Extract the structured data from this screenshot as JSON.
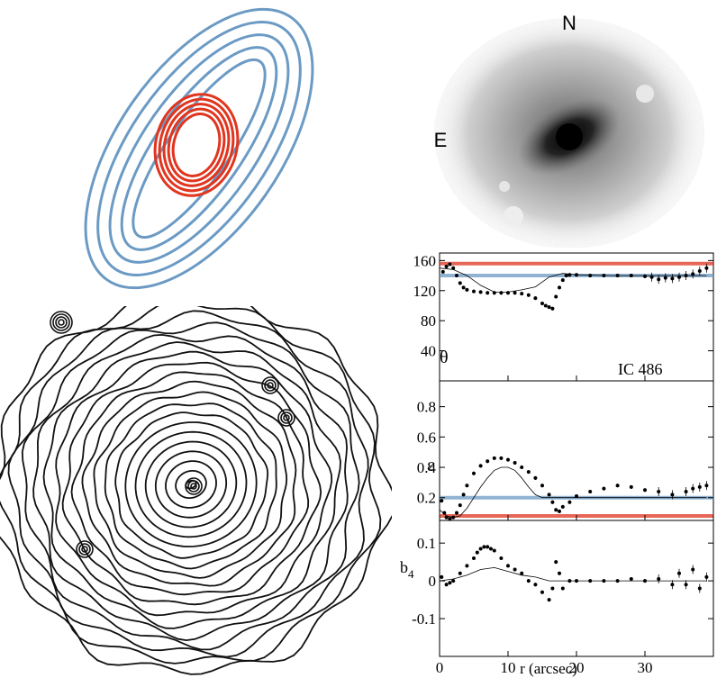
{
  "ellipse_panel": {
    "outer_color": "#6b9ac4",
    "inner_color": "#e0351f"
  },
  "galaxy_panel": {
    "north_label": "N",
    "east_label": "E"
  },
  "chart_data": [
    {
      "type": "scatter",
      "panel": "theta",
      "ylabel": "θ",
      "annotation": "IC 486",
      "ylim": [
        0,
        170
      ],
      "xlim": [
        0,
        40
      ],
      "yticks": [
        "40",
        "80",
        "120",
        "160"
      ],
      "ref_lines": [
        {
          "name": "",
          "color": "#e0351f",
          "value": 156
        },
        {
          "name": "",
          "color": "#6b9ac4",
          "value": 140
        }
      ],
      "data_x": [
        0.5,
        1,
        1.5,
        2,
        2.5,
        3,
        3.5,
        4,
        5,
        6,
        7,
        8,
        9,
        10,
        11,
        12,
        13,
        14,
        15,
        15.5,
        16,
        16.5,
        17,
        17.5,
        18,
        18.5,
        19,
        20,
        22,
        24,
        26,
        28,
        30,
        31,
        32,
        33,
        34,
        35,
        36,
        37,
        38,
        39
      ],
      "data_y": [
        145,
        152,
        155,
        150,
        140,
        130,
        124,
        121,
        119,
        118,
        117,
        117,
        117,
        117,
        117,
        116,
        114,
        110,
        103,
        100,
        98,
        96,
        112,
        124,
        134,
        140,
        141,
        141,
        140,
        140,
        140,
        140,
        139,
        138,
        135,
        137,
        136,
        138,
        140,
        142,
        146,
        150
      ],
      "model_x": [
        0,
        2,
        4,
        6,
        8,
        10,
        12,
        14,
        16,
        18,
        20,
        25,
        30,
        35,
        39
      ],
      "model_y": [
        150,
        148,
        140,
        127,
        118,
        118,
        121,
        125,
        138,
        143,
        141,
        140,
        140,
        140,
        140
      ]
    },
    {
      "type": "scatter",
      "panel": "ellipticity",
      "ylabel": "ε",
      "ylim": [
        0.05,
        0.97
      ],
      "xlim": [
        0,
        40
      ],
      "yticks": [
        "0.2",
        "0.4",
        "0.6",
        "0.8"
      ],
      "ref_lines": [
        {
          "name": "",
          "color": "#6b9ac4",
          "value": 0.2
        },
        {
          "name": "",
          "color": "#e0351f",
          "value": 0.08
        }
      ],
      "data_x": [
        0.3,
        0.7,
        1,
        1.5,
        2,
        2.5,
        3,
        3.5,
        4,
        5,
        6,
        7,
        8,
        9,
        10,
        11,
        12,
        13,
        14,
        15,
        16,
        16.5,
        17,
        17.5,
        18,
        19,
        20,
        22,
        24,
        26,
        28,
        30,
        32,
        34,
        36,
        37,
        38,
        39
      ],
      "data_y": [
        0.18,
        0.1,
        0.07,
        0.06,
        0.07,
        0.1,
        0.15,
        0.22,
        0.28,
        0.36,
        0.41,
        0.44,
        0.46,
        0.46,
        0.45,
        0.43,
        0.4,
        0.37,
        0.33,
        0.28,
        0.22,
        0.17,
        0.12,
        0.11,
        0.14,
        0.17,
        0.21,
        0.24,
        0.26,
        0.28,
        0.27,
        0.25,
        0.24,
        0.22,
        0.24,
        0.26,
        0.27,
        0.28
      ],
      "model_x": [
        0,
        1,
        2,
        3,
        4,
        5,
        6,
        7,
        8,
        9,
        10,
        11,
        12,
        13,
        14,
        15,
        16,
        18,
        20,
        25,
        30,
        35,
        39
      ],
      "model_y": [
        0.12,
        0.08,
        0.07,
        0.08,
        0.13,
        0.2,
        0.27,
        0.33,
        0.38,
        0.4,
        0.4,
        0.38,
        0.33,
        0.27,
        0.22,
        0.2,
        0.2,
        0.2,
        0.2,
        0.2,
        0.2,
        0.2,
        0.2
      ]
    },
    {
      "type": "scatter",
      "panel": "b4",
      "ylabel": "b",
      "ylabel_sub": "4",
      "xlabel": "r (arcsec)",
      "ylim": [
        -0.2,
        0.16
      ],
      "xlim": [
        0,
        40
      ],
      "yticks": [
        "-0.1",
        "0",
        "0.1"
      ],
      "xticks": [
        "0",
        "10",
        "20",
        "30"
      ],
      "data_x": [
        0.3,
        1,
        1.5,
        2,
        3,
        4,
        5,
        5.5,
        6,
        6.5,
        7,
        7.5,
        8,
        9,
        10,
        11,
        12,
        13,
        14,
        15,
        16,
        16.5,
        17,
        17.5,
        18,
        19,
        20,
        22,
        24,
        26,
        28,
        30,
        32,
        34,
        35,
        36,
        37,
        38,
        39
      ],
      "data_y": [
        0.01,
        -0.01,
        -0.005,
        0.0,
        0.02,
        0.04,
        0.06,
        0.075,
        0.085,
        0.09,
        0.09,
        0.085,
        0.08,
        0.06,
        0.04,
        0.03,
        0.02,
        0.0,
        -0.01,
        -0.03,
        -0.05,
        -0.02,
        0.05,
        0.02,
        -0.02,
        0.0,
        0.0,
        0.0,
        0.0,
        0.0,
        0.005,
        0.0,
        0.005,
        -0.01,
        0.02,
        -0.01,
        0.03,
        -0.02,
        0.01
      ],
      "model_x": [
        0,
        2,
        4,
        6,
        8,
        10,
        12,
        14,
        16,
        18,
        20,
        25,
        30,
        35,
        39
      ],
      "model_y": [
        0.0,
        0.005,
        0.015,
        0.03,
        0.035,
        0.025,
        0.015,
        0.01,
        0.0,
        0.0,
        0.0,
        0.0,
        0.0,
        0.0,
        0.0
      ]
    }
  ]
}
